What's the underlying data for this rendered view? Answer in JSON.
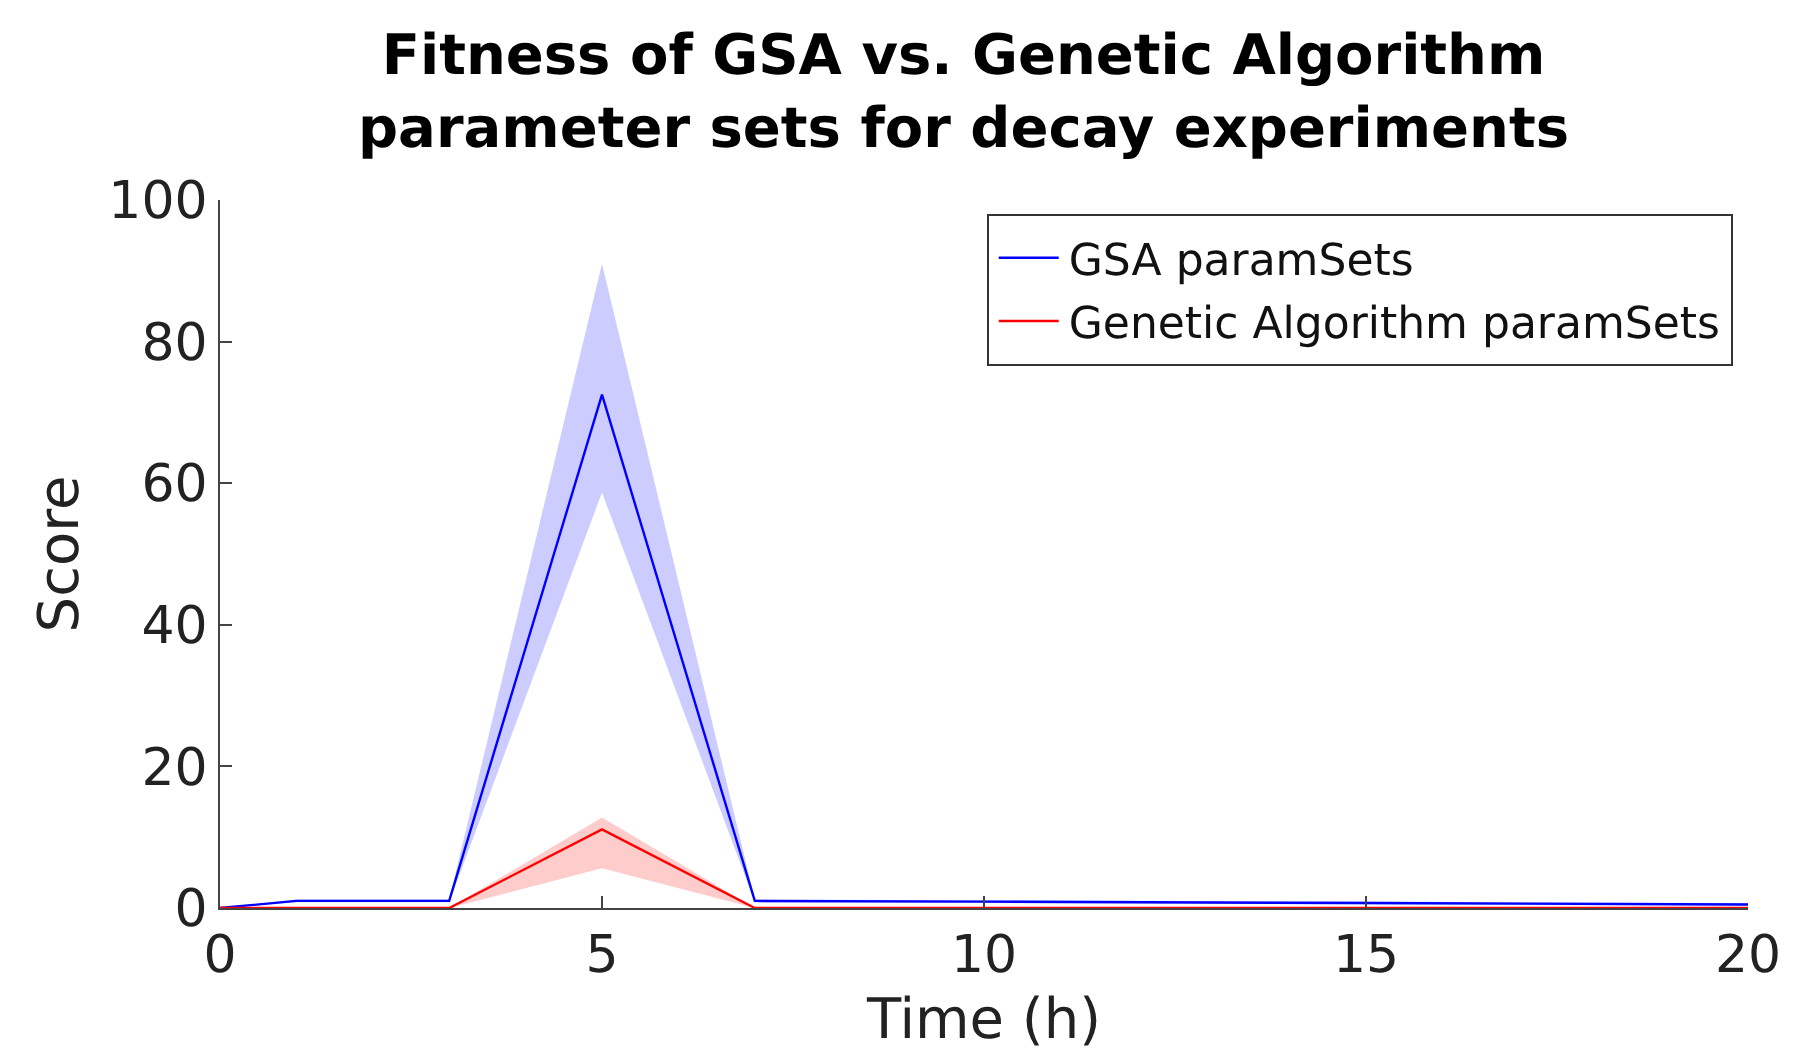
{
  "chart_data": {
    "type": "line",
    "title": "Fitness of GSA vs. Genetic Algorithm\nparameter sets for decay experiments",
    "xlabel": "Time (h)",
    "ylabel": "Score",
    "xlim": [
      0,
      20
    ],
    "xticks": [
      0,
      5,
      10,
      15,
      20
    ],
    "ylim": [
      0,
      100
    ],
    "yticks": [
      0,
      20,
      40,
      60,
      80,
      100
    ],
    "legend": "top right",
    "marker": "none",
    "line_style": "solid",
    "series": [
      {
        "name": "GSA paramSets",
        "color": "#0000ff",
        "x": [
          0,
          1,
          3,
          5,
          7,
          10,
          15,
          20
        ],
        "values": [
          0,
          1,
          1,
          72.5,
          1,
          0.9,
          0.7,
          0.5
        ],
        "lower": [
          0,
          0.8,
          0.8,
          58.7,
          0.8,
          0.7,
          0.5,
          0.3
        ],
        "upper": [
          0,
          1.2,
          1.2,
          91,
          1.2,
          1.1,
          0.9,
          0.7
        ]
      },
      {
        "name": "Genetic Algorithm paramSets",
        "color": "#ff0000",
        "x": [
          0,
          1,
          3,
          5,
          7,
          10,
          15,
          20
        ],
        "values": [
          0,
          0,
          0,
          11.1,
          0,
          0,
          0,
          0
        ],
        "lower": [
          0,
          0,
          0,
          5.6,
          0,
          0,
          0,
          0
        ],
        "upper": [
          0,
          0,
          0,
          12.8,
          0,
          0,
          0,
          0
        ]
      }
    ]
  }
}
